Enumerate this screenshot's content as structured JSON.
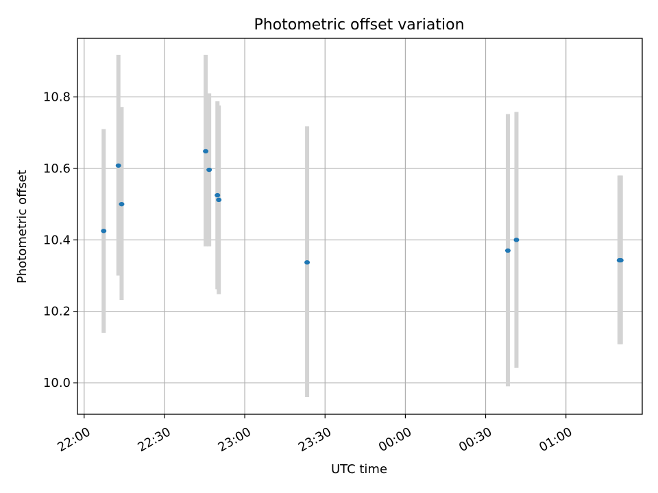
{
  "chart_data": {
    "type": "scatter",
    "title": "Photometric offset variation",
    "xlabel": "UTC time",
    "ylabel": "Photometric offset",
    "grid": true,
    "x_tick_labels": [
      "22:00",
      "22:30",
      "23:00",
      "23:30",
      "00:00",
      "00:30",
      "01:00"
    ],
    "x_tick_minutes": [
      0,
      30,
      60,
      90,
      120,
      150,
      180
    ],
    "x_range_minutes": [
      -2.5,
      208.5
    ],
    "y_ticks": [
      10.0,
      10.2,
      10.4,
      10.6,
      10.8
    ],
    "y_tick_labels": [
      "10.0",
      "10.2",
      "10.4",
      "10.6",
      "10.8"
    ],
    "ylim": [
      9.912,
      10.964
    ],
    "colors": {
      "marker": "#1f77b4",
      "errorbar": "#d3d3d3",
      "grid": "#b0b0b0"
    },
    "points": [
      {
        "time": "22:07",
        "t": 7.3,
        "y": 10.425,
        "ylo": 10.14,
        "yhi": 10.71
      },
      {
        "time": "22:13",
        "t": 12.8,
        "y": 10.608,
        "ylo": 10.3,
        "yhi": 10.918
      },
      {
        "time": "22:14",
        "t": 14.0,
        "y": 10.5,
        "ylo": 10.232,
        "yhi": 10.772
      },
      {
        "time": "22:45",
        "t": 45.4,
        "y": 10.648,
        "ylo": 10.382,
        "yhi": 10.918
      },
      {
        "time": "22:46",
        "t": 46.7,
        "y": 10.596,
        "ylo": 10.382,
        "yhi": 10.81
      },
      {
        "time": "22:49",
        "t": 49.8,
        "y": 10.525,
        "ylo": 10.262,
        "yhi": 10.788
      },
      {
        "time": "22:50",
        "t": 50.3,
        "y": 10.512,
        "ylo": 10.248,
        "yhi": 10.776
      },
      {
        "time": "23:23",
        "t": 83.3,
        "y": 10.337,
        "ylo": 9.96,
        "yhi": 10.718
      },
      {
        "time": "00:38",
        "t": 158.3,
        "y": 10.37,
        "ylo": 9.99,
        "yhi": 10.752
      },
      {
        "time": "00:41",
        "t": 161.5,
        "y": 10.4,
        "ylo": 10.042,
        "yhi": 10.758
      },
      {
        "time": "01:20",
        "t": 200.0,
        "y": 10.343,
        "ylo": 10.108,
        "yhi": 10.58
      },
      {
        "time": "01:20",
        "t": 200.5,
        "y": 10.343,
        "ylo": 10.108,
        "yhi": 10.58
      }
    ]
  }
}
